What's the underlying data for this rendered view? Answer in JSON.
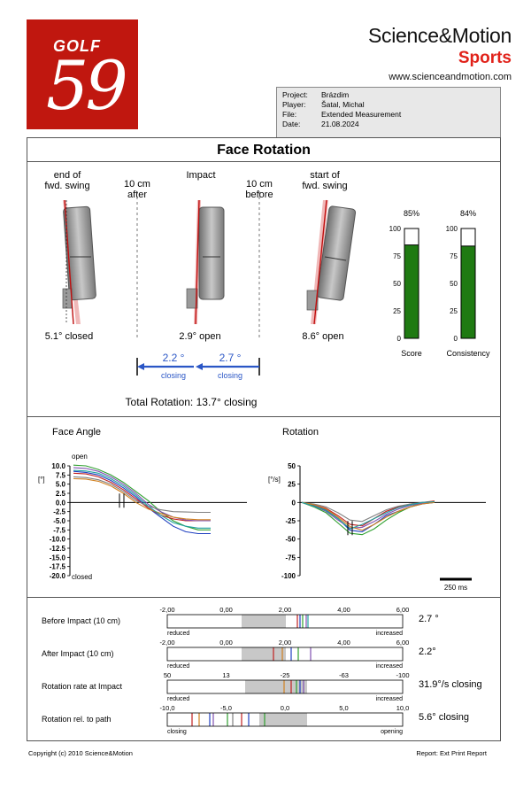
{
  "logo": {
    "word": "GOLF",
    "number": "59"
  },
  "brand": {
    "name": "Science&Motion",
    "product": "Sports",
    "url": "www.scienceandmotion.com"
  },
  "info": [
    {
      "key": "Project:",
      "value": "Brázdim"
    },
    {
      "key": "Player:",
      "value": "Šatal, Michal"
    },
    {
      "key": "File:",
      "value": "Extended Measurement"
    },
    {
      "key": "Date:",
      "value": "21.08.2024"
    }
  ],
  "face_rotation": {
    "title": "Face Rotation",
    "end_label": [
      "end of",
      "fwd. swing"
    ],
    "after_label": [
      "10 cm",
      "after"
    ],
    "impact_label": "Impact",
    "before_label": [
      "10 cm",
      "before"
    ],
    "start_label": [
      "start of",
      "fwd. swing"
    ],
    "end_value": "5.1° closed",
    "impact_value": "2.9° open",
    "start_value": "8.6° open",
    "arrow_left_value": "2.2 °",
    "arrow_left_label": "closing",
    "arrow_right_value": "2.7 °",
    "arrow_right_label": "closing",
    "total": "Total Rotation: 13.7° closing",
    "gauges": [
      {
        "label": "Score",
        "percent": "85%",
        "value": 85
      },
      {
        "label": "Consistency",
        "percent": "84%",
        "value": 84
      }
    ],
    "gauge_ticks": [
      "100",
      "75",
      "50",
      "25",
      "0"
    ],
    "colors": {
      "gauge_fill": "#1f7a12",
      "arrow": "#2a56c6",
      "face_line": "#cc1111"
    }
  },
  "chart_data": [
    {
      "type": "line",
      "title": "Face Angle",
      "ylabel": "[°]",
      "top_annotation": "open",
      "bottom_annotation": "closed",
      "ylim": [
        -20,
        10
      ],
      "yticks": [
        "10.0",
        "7.5",
        "5.0",
        "2.5",
        "0.0",
        "-2.5",
        "-5.0",
        "-7.5",
        "-10.0",
        "-12.5",
        "-15.0",
        "-17.5",
        "-20.0"
      ],
      "series": [
        {
          "color": "#2040c0",
          "values": [
            8.5,
            8.2,
            7.5,
            6,
            4,
            1.5,
            -1.5,
            -4,
            -6.5,
            -8,
            -8.5,
            -8.5
          ]
        },
        {
          "color": "#30a030",
          "values": [
            10.2,
            10,
            9,
            7.5,
            5.5,
            3,
            0.5,
            -2.5,
            -5,
            -6.5,
            -7.5,
            -7.5
          ]
        },
        {
          "color": "#c02020",
          "values": [
            8,
            7.8,
            7,
            5.5,
            3.5,
            1,
            -1.5,
            -3.5,
            -4.5,
            -5,
            -5,
            -5
          ]
        },
        {
          "color": "#8050b0",
          "values": [
            9.5,
            9.3,
            8.5,
            7,
            5,
            2.5,
            -0.5,
            -2.5,
            -4,
            -4.8,
            -5,
            -5
          ]
        },
        {
          "color": "#808080",
          "values": [
            7,
            6.8,
            6.2,
            5,
            3,
            0.5,
            -1,
            -2,
            -2.5,
            -2.6,
            -2.7,
            -2.7
          ]
        },
        {
          "color": "#d08020",
          "values": [
            6.5,
            6.4,
            5.8,
            4.5,
            2.5,
            0,
            -1.8,
            -3,
            -4,
            -4.5,
            -4.7,
            -4.7
          ]
        },
        {
          "color": "#20a0a0",
          "values": [
            8.8,
            8.6,
            8,
            6.5,
            4.5,
            2,
            -1,
            -3.5,
            -5.5,
            -6.5,
            -7,
            -7
          ]
        }
      ]
    },
    {
      "type": "line",
      "title": "Rotation",
      "ylabel": "[°/s]",
      "ylim": [
        -100,
        50
      ],
      "yticks": [
        "50",
        "25",
        "0",
        "-25",
        "-50",
        "-75",
        "-100"
      ],
      "scale_label": "250 ms",
      "series": [
        {
          "color": "#2040c0",
          "values": [
            0,
            -4,
            -10,
            -22,
            -38,
            -40,
            -30,
            -18,
            -12,
            -6,
            -2,
            0
          ]
        },
        {
          "color": "#30a030",
          "values": [
            0,
            -6,
            -14,
            -28,
            -42,
            -44,
            -36,
            -24,
            -14,
            -6,
            -1,
            0
          ]
        },
        {
          "color": "#c02020",
          "values": [
            0,
            -3,
            -8,
            -18,
            -30,
            -32,
            -22,
            -12,
            -6,
            -2,
            0,
            2
          ]
        },
        {
          "color": "#8050b0",
          "values": [
            0,
            -5,
            -12,
            -24,
            -35,
            -34,
            -26,
            -16,
            -9,
            -4,
            -1,
            0
          ]
        },
        {
          "color": "#808080",
          "values": [
            0,
            -2,
            -6,
            -14,
            -24,
            -26,
            -18,
            -10,
            -5,
            -2,
            0,
            1
          ]
        },
        {
          "color": "#d08020",
          "values": [
            0,
            -3,
            -9,
            -20,
            -33,
            -38,
            -30,
            -20,
            -12,
            -6,
            -2,
            0
          ]
        },
        {
          "color": "#20a0a0",
          "values": [
            0,
            -5,
            -11,
            -22,
            -36,
            -30,
            -22,
            -14,
            -7,
            -3,
            0,
            1
          ]
        }
      ]
    }
  ],
  "bars": [
    {
      "label": "Before Impact (10 cm)",
      "value": "2.7 °",
      "ticks": [
        "-2,00",
        "0,00",
        "2,00",
        "4,00",
        "6,00"
      ],
      "left": "reduced",
      "right": "increased"
    },
    {
      "label": "After Impact (10 cm)",
      "value": "2.2°",
      "ticks": [
        "-2,00",
        "0,00",
        "2,00",
        "4,00",
        "6,00"
      ],
      "left": "reduced",
      "right": "increased"
    },
    {
      "label": "Rotation rate at Impact",
      "value": "31.9°/s closing",
      "ticks": [
        "50",
        "13",
        "-25",
        "-63",
        "-100"
      ],
      "left": "reduced",
      "right": "increased"
    },
    {
      "label": "Rotation rel. to path",
      "value": "5.6° closing",
      "ticks": [
        "-10,0",
        "-5,0",
        "0,0",
        "5,0",
        "10,0"
      ],
      "left": "closing",
      "right": "opening"
    }
  ],
  "footer": {
    "left": "Copyright (c) 2010 Science&Motion",
    "right": "Report: Ext Print Report"
  }
}
